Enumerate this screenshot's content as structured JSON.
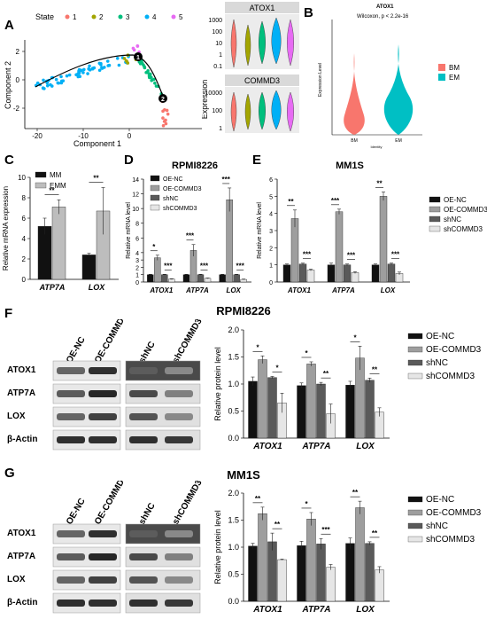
{
  "panels": {
    "a": "A",
    "b": "B",
    "c": "C",
    "d": "D",
    "e": "E",
    "f": "F",
    "g": "G"
  },
  "panel_a": {
    "legend_title": "State",
    "states": [
      {
        "label": "1",
        "color": "#f8766d"
      },
      {
        "label": "2",
        "color": "#a3a500"
      },
      {
        "label": "3",
        "color": "#00bf7d"
      },
      {
        "label": "4",
        "color": "#00b0f6"
      },
      {
        "label": "5",
        "color": "#e76bf3"
      }
    ],
    "xlabel": "Component 1",
    "ylabel": "Component 2",
    "xticks": [
      "-20",
      "-10",
      "0"
    ],
    "yticks": [
      "2",
      "0",
      "-2"
    ],
    "branch_points": [
      "1",
      "2"
    ],
    "genes": [
      "ATOX1",
      "COMMD3"
    ],
    "atox1_ticks": [
      "1000",
      "100",
      "10",
      "1",
      "0.1"
    ],
    "commd3_ticks": [
      "10000",
      "100",
      "1"
    ],
    "violin_ylabel": "Expression"
  },
  "panel_b": {
    "title": "ATOX1",
    "stat": "Wilcoxon, p < 2.2e-16",
    "ylabel": "Expression Level",
    "xlabel": "Identity",
    "groups": [
      "BM",
      "EM"
    ],
    "colors": [
      "#f8766d",
      "#00bfc4"
    ]
  },
  "chart_data": [
    {
      "id": "C",
      "type": "bar",
      "title": "",
      "ylabel": "Relative mRNA expression",
      "ylim": [
        0,
        10
      ],
      "yticks": [
        "0",
        "2",
        "4",
        "6",
        "8",
        "10"
      ],
      "categories": [
        "ATP7A",
        "LOX"
      ],
      "series": [
        {
          "name": "MM",
          "values": [
            5.2,
            2.4
          ],
          "errors": [
            0.8,
            0.15
          ],
          "color": "#111111"
        },
        {
          "name": "EMM",
          "values": [
            7.1,
            6.7
          ],
          "errors": [
            0.7,
            2.3
          ],
          "color": "#bdbdbd"
        }
      ],
      "significance": [
        "**",
        "**"
      ]
    },
    {
      "id": "D",
      "type": "bar",
      "title": "RPMI8226",
      "ylabel": "Relative mRNA level",
      "ylim": [
        0,
        14
      ],
      "yticks": [
        "0",
        "1",
        "2",
        "3",
        "4",
        "6",
        "8",
        "10",
        "12",
        "14"
      ],
      "categories": [
        "ATOX1",
        "ATP7A",
        "LOX"
      ],
      "series": [
        {
          "name": "OE-NC",
          "values": [
            1.0,
            1.0,
            1.0
          ],
          "errors": [
            0.05,
            0.05,
            0.05
          ],
          "color": "#111111"
        },
        {
          "name": "OE-COMMD3",
          "values": [
            3.3,
            4.3,
            11.2
          ],
          "errors": [
            0.35,
            0.8,
            1.6
          ],
          "color": "#9e9e9e"
        },
        {
          "name": "shNC",
          "values": [
            1.0,
            1.0,
            1.0
          ],
          "errors": [
            0.05,
            0.05,
            0.05
          ],
          "color": "#5a5a5a"
        },
        {
          "name": "shCOMMD3",
          "values": [
            0.4,
            0.5,
            0.35
          ],
          "errors": [
            0.05,
            0.05,
            0.05
          ],
          "color": "#e6e6e6"
        }
      ],
      "significance": [
        [
          "*",
          "***"
        ],
        [
          "***",
          "***"
        ],
        [
          "***",
          "***"
        ]
      ]
    },
    {
      "id": "E",
      "type": "bar",
      "title": "MM1S",
      "ylabel": "Relative mRNA level",
      "ylim": [
        0,
        6
      ],
      "yticks": [
        "0",
        "1",
        "2",
        "3",
        "4",
        "5",
        "6"
      ],
      "categories": [
        "ATOX1",
        "ATP7A",
        "LOX"
      ],
      "series": [
        {
          "name": "OE-NC",
          "values": [
            1.0,
            1.0,
            1.0
          ],
          "errors": [
            0.05,
            0.1,
            0.05
          ],
          "color": "#111111"
        },
        {
          "name": "OE-COMMD3",
          "values": [
            3.7,
            4.1,
            5.0
          ],
          "errors": [
            0.5,
            0.15,
            0.25
          ],
          "color": "#9e9e9e"
        },
        {
          "name": "shNC",
          "values": [
            1.05,
            1.0,
            1.05
          ],
          "errors": [
            0.05,
            0.05,
            0.05
          ],
          "color": "#5a5a5a"
        },
        {
          "name": "shCOMMD3",
          "values": [
            0.7,
            0.55,
            0.5
          ],
          "errors": [
            0.05,
            0.05,
            0.08
          ],
          "color": "#e6e6e6"
        }
      ],
      "significance": [
        [
          "**",
          "***"
        ],
        [
          "***",
          "***"
        ],
        [
          "**",
          "***"
        ]
      ]
    },
    {
      "id": "F",
      "type": "bar",
      "title": "",
      "ylabel": "Relative protein level",
      "ylim": [
        0,
        2.0
      ],
      "yticks": [
        "0.0",
        "0.5",
        "1.0",
        "1.5",
        "2.0"
      ],
      "categories": [
        "ATOX1",
        "ATP7A",
        "LOX"
      ],
      "series": [
        {
          "name": "OE-NC",
          "values": [
            1.05,
            0.97,
            0.98
          ],
          "errors": [
            0.08,
            0.05,
            0.07
          ],
          "color": "#111111"
        },
        {
          "name": "OE-COMMD3",
          "values": [
            1.45,
            1.37,
            1.48
          ],
          "errors": [
            0.07,
            0.04,
            0.22
          ],
          "color": "#9e9e9e"
        },
        {
          "name": "shNC",
          "values": [
            1.12,
            1.0,
            1.07
          ],
          "errors": [
            0.02,
            0.03,
            0.04
          ],
          "color": "#5a5a5a"
        },
        {
          "name": "shCOMMD3",
          "values": [
            0.65,
            0.45,
            0.48
          ],
          "errors": [
            0.18,
            0.18,
            0.08
          ],
          "color": "#e6e6e6"
        }
      ],
      "significance": [
        [
          "*",
          "*"
        ],
        [
          "*",
          "**"
        ],
        [
          "*",
          "**"
        ]
      ]
    },
    {
      "id": "G",
      "type": "bar",
      "title": "",
      "ylabel": "Relative protein level",
      "ylim": [
        0,
        2.0
      ],
      "yticks": [
        "0.0",
        "0.5",
        "1.0",
        "1.5",
        "2.0"
      ],
      "categories": [
        "ATOX1",
        "ATP7A",
        "LOX"
      ],
      "series": [
        {
          "name": "OE-NC",
          "values": [
            1.02,
            1.03,
            1.07
          ],
          "errors": [
            0.05,
            0.08,
            0.1
          ],
          "color": "#111111"
        },
        {
          "name": "OE-COMMD3",
          "values": [
            1.62,
            1.52,
            1.73
          ],
          "errors": [
            0.12,
            0.12,
            0.12
          ],
          "color": "#9e9e9e"
        },
        {
          "name": "shNC",
          "values": [
            1.1,
            1.06,
            1.07
          ],
          "errors": [
            0.16,
            0.1,
            0.03
          ],
          "color": "#5a5a5a"
        },
        {
          "name": "shCOMMD3",
          "values": [
            0.77,
            0.63,
            0.58
          ],
          "errors": [
            0.01,
            0.05,
            0.06
          ],
          "color": "#e6e6e6"
        }
      ],
      "significance": [
        [
          "**",
          "**"
        ],
        [
          "*",
          "***"
        ],
        [
          "**",
          "**"
        ]
      ]
    }
  ],
  "panel_f": {
    "cell_line": "RPMI8226",
    "lanes_left": [
      "OE-NC",
      "OE-COMMD3"
    ],
    "lanes_right": [
      "shNC",
      "shCOMMD3"
    ],
    "proteins": [
      "ATOX1",
      "ATP7A",
      "LOX",
      "β-Actin"
    ]
  },
  "panel_g": {
    "cell_line": "MM1S",
    "lanes_left": [
      "OE-NC",
      "OE-COMMD3"
    ],
    "lanes_right": [
      "shNC",
      "shCOMMD3"
    ],
    "proteins": [
      "ATOX1",
      "ATP7A",
      "LOX",
      "β-Actin"
    ]
  }
}
